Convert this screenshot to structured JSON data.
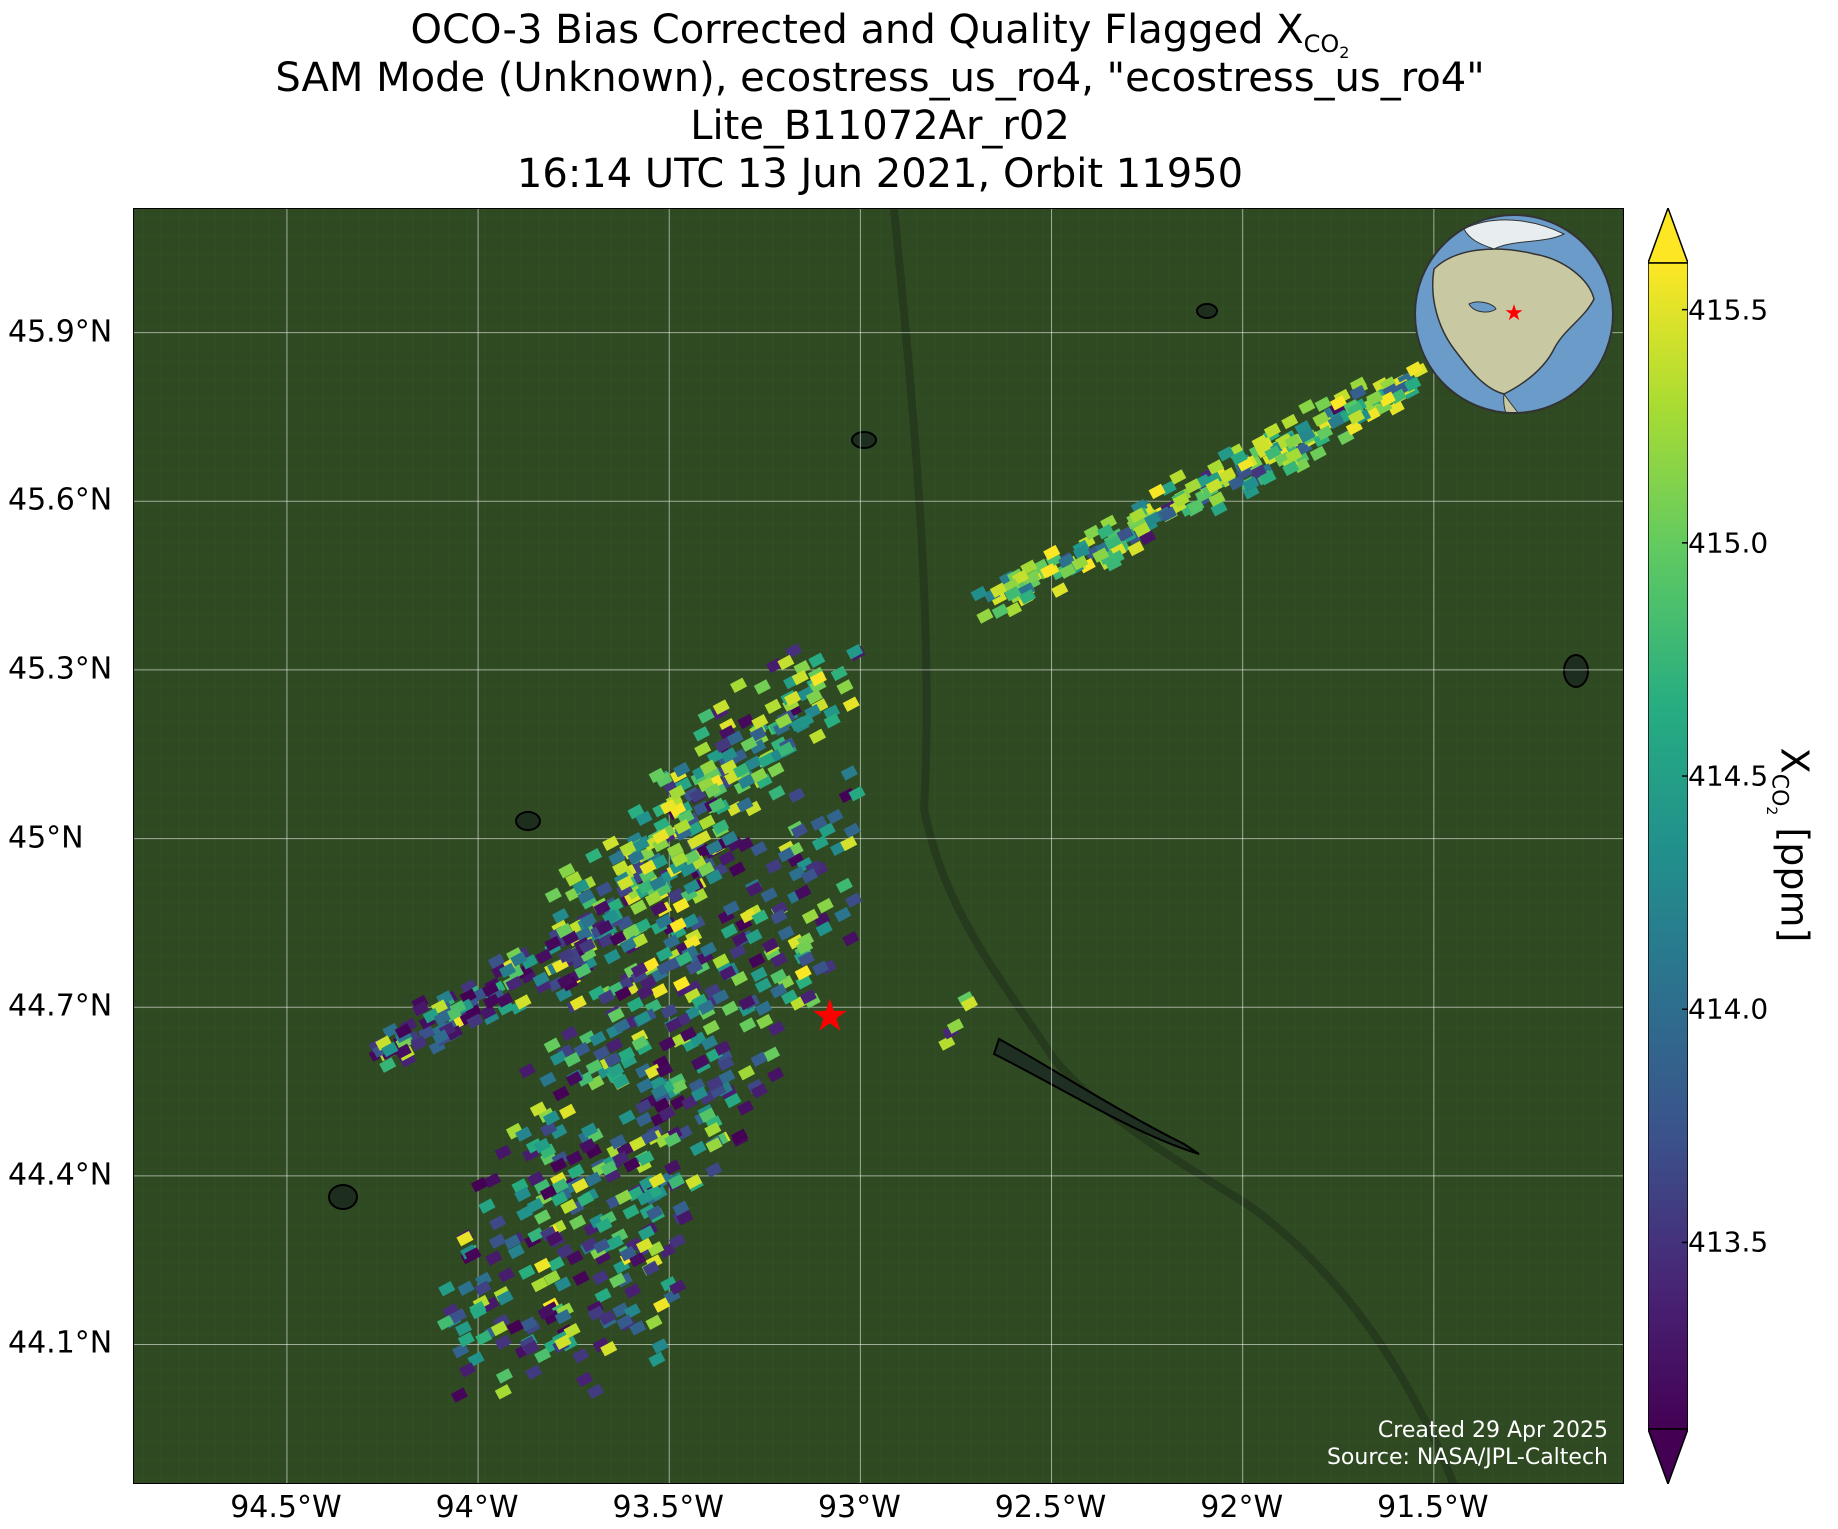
{
  "title": {
    "line1_prefix": "OCO-3 Bias Corrected and Quality Flagged X",
    "line1_sub": "CO",
    "line1_sub2": "2",
    "line2": "SAM Mode (Unknown), ecostress_us_ro4, \"ecostress_us_ro4\"",
    "line3": "Lite_B11072Ar_r02",
    "line4": "16:14 UTC 13 Jun 2021, Orbit 11950"
  },
  "map": {
    "lon_range": [
      -94.9,
      -91.0
    ],
    "lat_range": [
      43.85,
      46.12
    ],
    "gridlines": true,
    "lat_ticks": [
      {
        "value": 45.9,
        "label": "45.9°N"
      },
      {
        "value": 45.6,
        "label": "45.6°N"
      },
      {
        "value": 45.3,
        "label": "45.3°N"
      },
      {
        "value": 45.0,
        "label": "45°N"
      },
      {
        "value": 44.7,
        "label": "44.7°N"
      },
      {
        "value": 44.4,
        "label": "44.4°N"
      },
      {
        "value": 44.1,
        "label": "44.1°N"
      }
    ],
    "lon_ticks": [
      {
        "value": -94.5,
        "label": "94.5°W"
      },
      {
        "value": -94.0,
        "label": "94°W"
      },
      {
        "value": -93.5,
        "label": "93.5°W"
      },
      {
        "value": -93.0,
        "label": "93°W"
      },
      {
        "value": -92.5,
        "label": "92.5°W"
      },
      {
        "value": -92.0,
        "label": "92°W"
      },
      {
        "value": -91.5,
        "label": "91.5°W"
      }
    ],
    "target": {
      "lon": -93.08,
      "lat": 44.68,
      "color": "#ff0000"
    },
    "background_color": "#2f4a22",
    "inset_globe": {
      "show": true,
      "marker_color": "#ff0000"
    }
  },
  "colorbar": {
    "range": [
      413.1,
      415.6
    ],
    "colormap": "viridis",
    "extend": "both",
    "ticks": [
      {
        "value": 415.5,
        "label": "415.5"
      },
      {
        "value": 415.0,
        "label": "415.0"
      },
      {
        "value": 414.5,
        "label": "414.5"
      },
      {
        "value": 414.0,
        "label": "414.0"
      },
      {
        "value": 413.5,
        "label": "413.5"
      }
    ],
    "label_prefix": "X",
    "label_sub": "CO",
    "label_sub2": "2",
    "label_suffix": " [ppm]"
  },
  "credits": {
    "created": "Created 29 Apr 2025",
    "source": "Source: NASA/JPL-Caltech"
  }
}
